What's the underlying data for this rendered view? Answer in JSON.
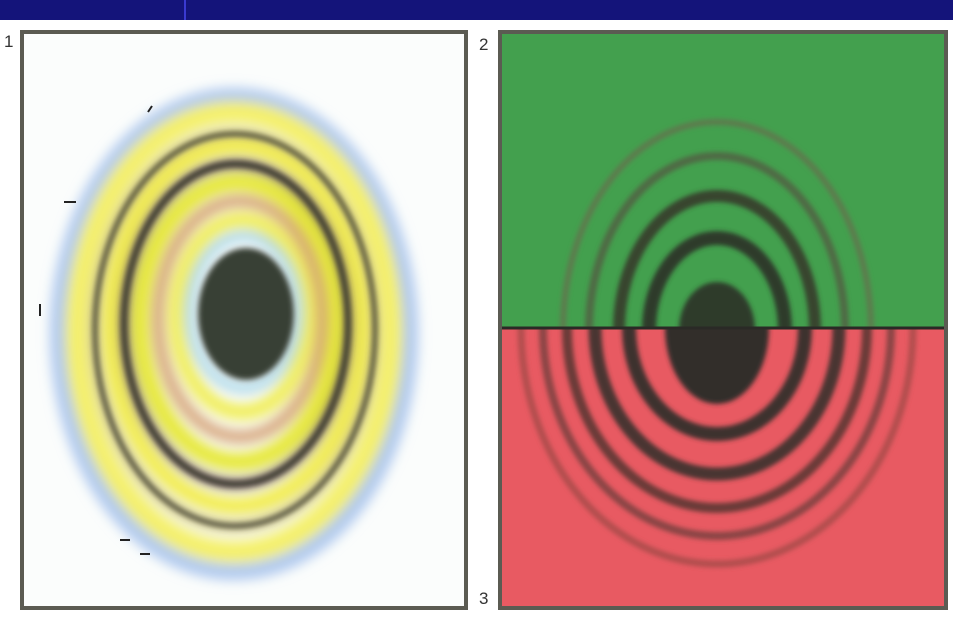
{
  "panels": [
    {
      "label": "1",
      "description_icon": "newton-rings-white-light"
    },
    {
      "label": "2",
      "description_icon": "newton-rings-green-light"
    },
    {
      "label": "3",
      "description_icon": "newton-rings-red-light"
    }
  ],
  "colors": {
    "title_bar": "#14147a",
    "frame_border": "#5b5b52",
    "green_background": "#3f9c4a",
    "red_background": "#e85a62",
    "ring_dark": "#3a3a34",
    "ring_yellow": "#f3ef40"
  }
}
